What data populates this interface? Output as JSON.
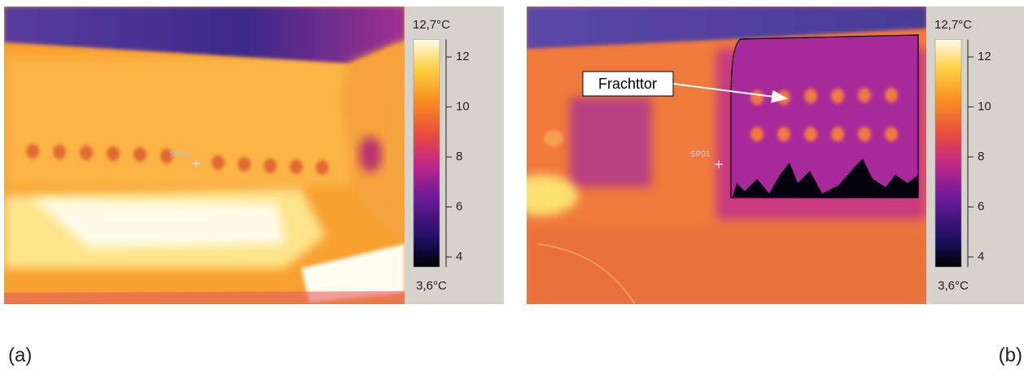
{
  "panels": [
    {
      "label": "(a)",
      "spot": "SP01",
      "scale": {
        "max": {
          "value": 12.7,
          "label": "12,7°C"
        },
        "min": {
          "value": 3.6,
          "label": "3,6°C"
        },
        "ticks": [
          4,
          6,
          8,
          10,
          12
        ]
      }
    },
    {
      "label": "(b)",
      "spot": "SP01",
      "annotation": "Frachttor",
      "scale": {
        "max": {
          "value": 12.7,
          "label": "12,7°C"
        },
        "min": {
          "value": 3.6,
          "label": "3,6°C"
        },
        "ticks": [
          4,
          6,
          8,
          10,
          12
        ]
      }
    }
  ]
}
